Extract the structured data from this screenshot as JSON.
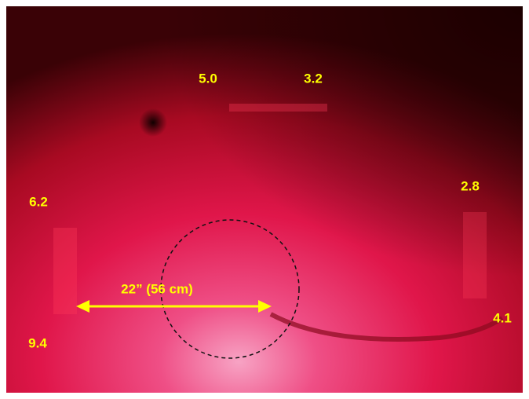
{
  "labels": [
    {
      "text": "5.0"
    },
    {
      "text": "3.2"
    },
    {
      "text": "6.2"
    },
    {
      "text": "2.8"
    },
    {
      "text": "9.4"
    },
    {
      "text": "4.1"
    }
  ],
  "dimension": {
    "label": "22” (56 cm)"
  }
}
